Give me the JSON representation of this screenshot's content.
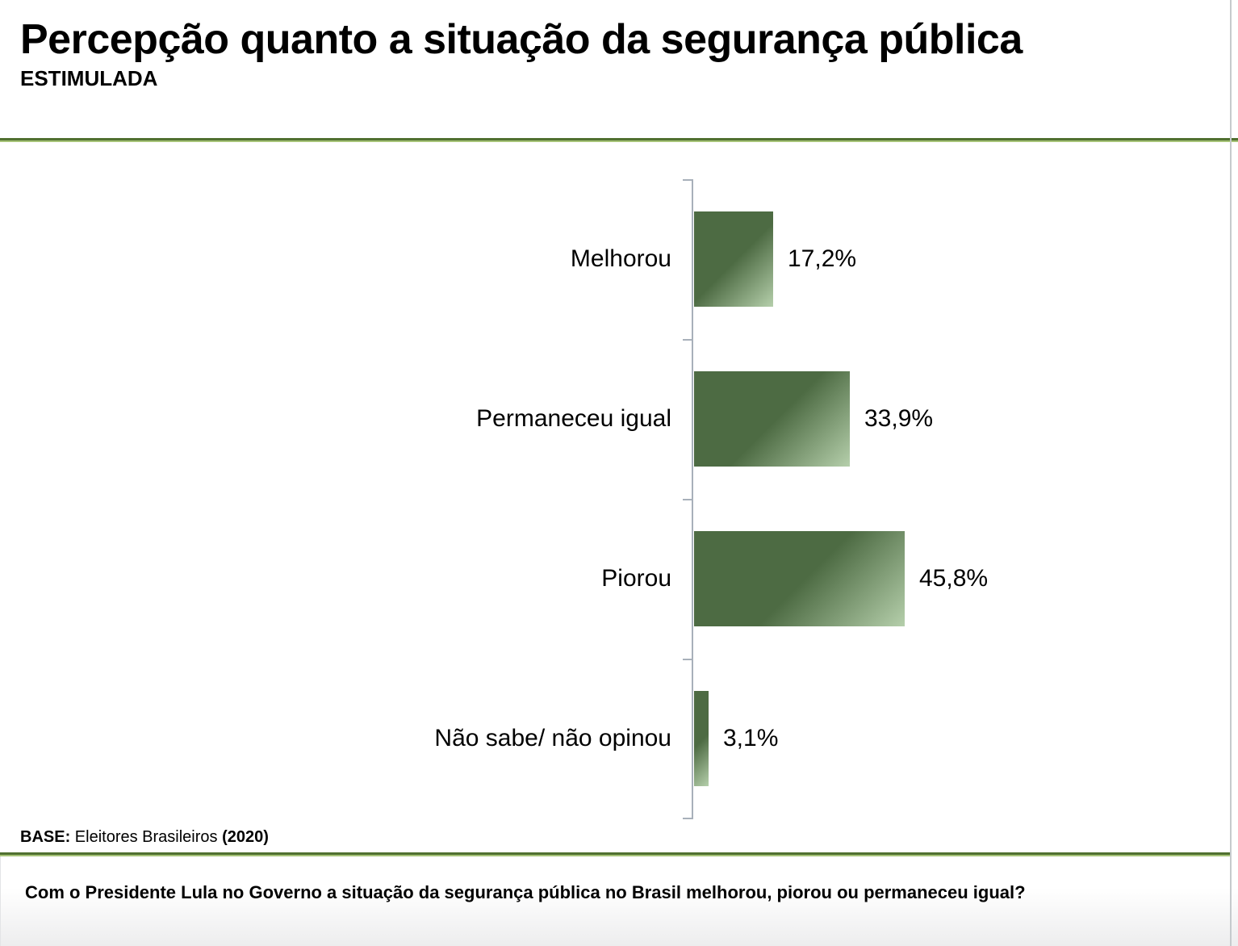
{
  "header": {
    "title": "Percepção quanto a situação da segurança pública",
    "subtitle": "ESTIMULADA"
  },
  "chart_data": {
    "type": "bar",
    "orientation": "horizontal",
    "title": "Percepção quanto a situação da segurança pública (ESTIMULADA)",
    "categories": [
      "Melhorou",
      "Permaneceu igual",
      "Piorou",
      "Não sabe/ não opinou"
    ],
    "values": [
      17.2,
      33.9,
      45.8,
      3.1
    ],
    "value_labels": [
      "17,2%",
      "33,9%",
      "45,8%",
      "3,1%"
    ],
    "xlim": [
      0,
      50
    ],
    "grid": false,
    "legend": false,
    "bar_color_dark": "#4d6b43",
    "bar_color_light": "#b5cfab",
    "axis_color": "#a8b0ba"
  },
  "base": {
    "prefix": "BASE:",
    "text": " Eleitores Brasileiros ",
    "year": "(2020)"
  },
  "footer": {
    "question": "Com o Presidente Lula no Governo a situação da segurança pública no Brasil melhorou, piorou ou permaneceu igual?"
  },
  "colors": {
    "separator_dark": "#507030",
    "separator_light": "#a6c377"
  }
}
